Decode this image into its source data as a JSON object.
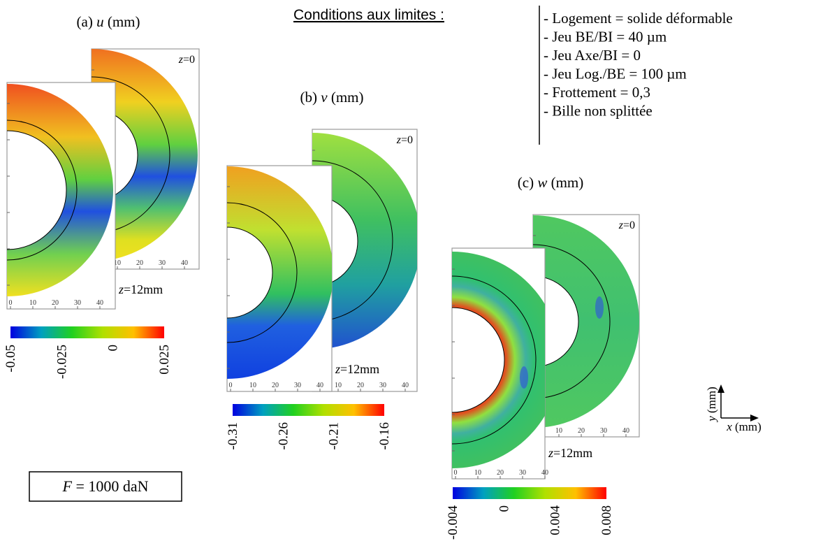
{
  "panels": [
    {
      "label": {
        "prefix": "(a)",
        "var": "u",
        "unit": "(mm)"
      },
      "z_top": {
        "var": "z",
        "value": "=0"
      },
      "z_bottom": {
        "var": "z",
        "value": "=12mm"
      },
      "axis_ticks": [
        "0",
        "10",
        "20",
        "30",
        "40"
      ],
      "colorbar_ticks": [
        "-0.05",
        "-0.025",
        "0",
        "0.025"
      ]
    },
    {
      "label": {
        "prefix": "(b)",
        "var": "v",
        "unit": "(mm)"
      },
      "z_top": {
        "var": "z",
        "value": "=0"
      },
      "z_bottom": {
        "var": "z",
        "value": "=12mm"
      },
      "axis_ticks": [
        "0",
        "10",
        "20",
        "30",
        "40"
      ],
      "colorbar_ticks": [
        "-0.31",
        "-0.26",
        "-0.21",
        "-0.16"
      ]
    },
    {
      "label": {
        "prefix": "(c)",
        "var": "w",
        "unit": "(mm)"
      },
      "z_top": {
        "var": "z",
        "value": "=0"
      },
      "z_bottom": {
        "var": "z",
        "value": "=12mm"
      },
      "axis_ticks": [
        "0",
        "10",
        "20",
        "30",
        "40"
      ],
      "colorbar_ticks": [
        "-0.004",
        "0",
        "0.004",
        "0.008"
      ]
    }
  ],
  "conditions": {
    "title": "Conditions aux limites :",
    "items": [
      "- Logement = solide déformable",
      "- Jeu BE/BI = 40 µm",
      "- Jeu Axe/BI = 0",
      "- Jeu Log./BE = 100 µm",
      "- Frottement = 0,3",
      "- Bille non splittée"
    ]
  },
  "force": {
    "var": "F",
    "text": "= 1000 daN"
  },
  "axes": {
    "y": {
      "var": "y",
      "unit": "(mm)"
    },
    "x": {
      "var": "x",
      "unit": "(mm)"
    }
  }
}
